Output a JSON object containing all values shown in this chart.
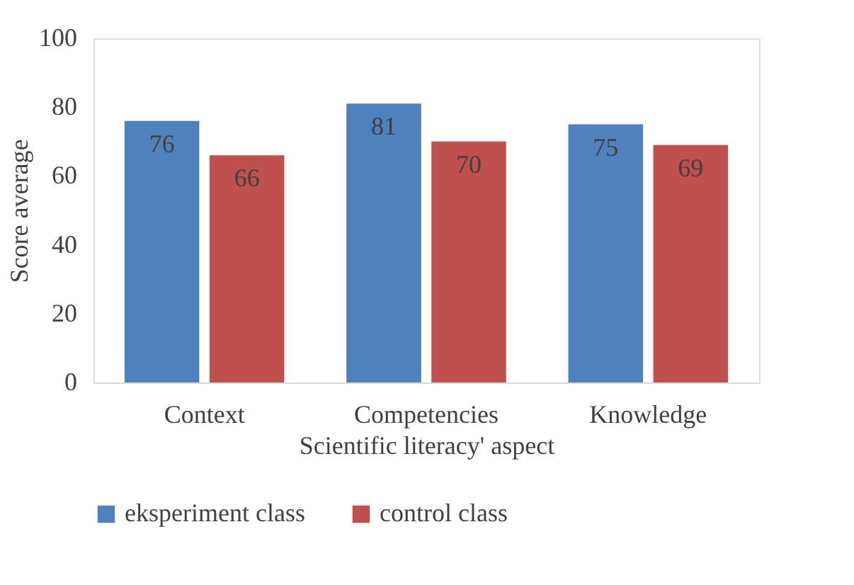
{
  "chart_data": {
    "type": "bar",
    "xlabel": "Scientific literacy' aspect",
    "ylabel": "Score average",
    "categories": [
      "Context",
      "Competencies",
      "Knowledge"
    ],
    "series": [
      {
        "name": "eksperiment class",
        "color": "#4f81bd",
        "values": [
          76,
          81,
          75
        ]
      },
      {
        "name": "control class",
        "color": "#c0504d",
        "values": [
          66,
          70,
          69
        ]
      }
    ],
    "ylim": [
      0,
      100
    ],
    "yticks": [
      0,
      20,
      40,
      60,
      80,
      100
    ],
    "grid": false,
    "legend": "bottom",
    "data_labels": true
  }
}
